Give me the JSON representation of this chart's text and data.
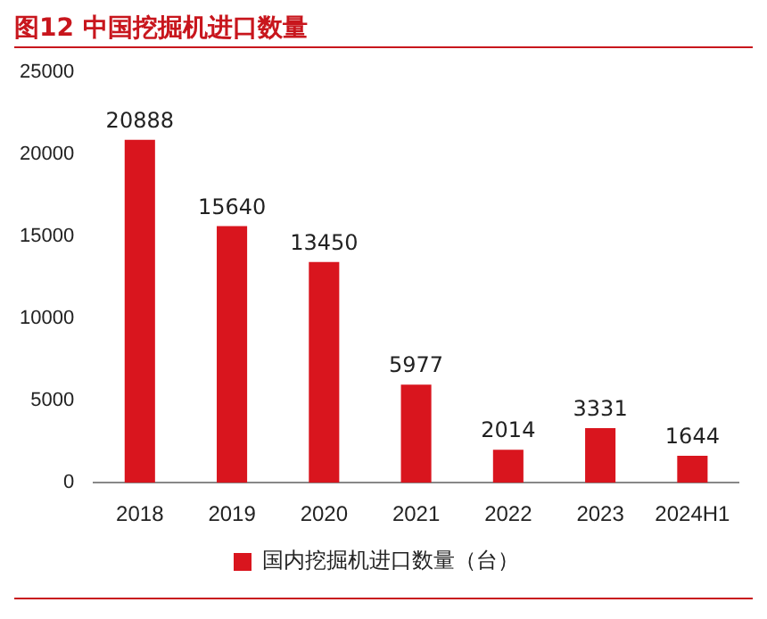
{
  "chart_data": {
    "type": "bar",
    "title": "图12  中国挖掘机进口数量",
    "categories": [
      "2018",
      "2019",
      "2020",
      "2021",
      "2022",
      "2023",
      "2024H1"
    ],
    "series": [
      {
        "name": "国内挖掘机进口数量（台）",
        "color": "#d9151e",
        "values": [
          20888,
          15640,
          13450,
          5977,
          2014,
          3331,
          1644
        ]
      }
    ],
    "ylim": [
      0,
      25000
    ],
    "yticks": [
      0,
      5000,
      10000,
      15000,
      20000,
      25000
    ],
    "grid": false,
    "legend": "bottom",
    "data_labels": true
  }
}
